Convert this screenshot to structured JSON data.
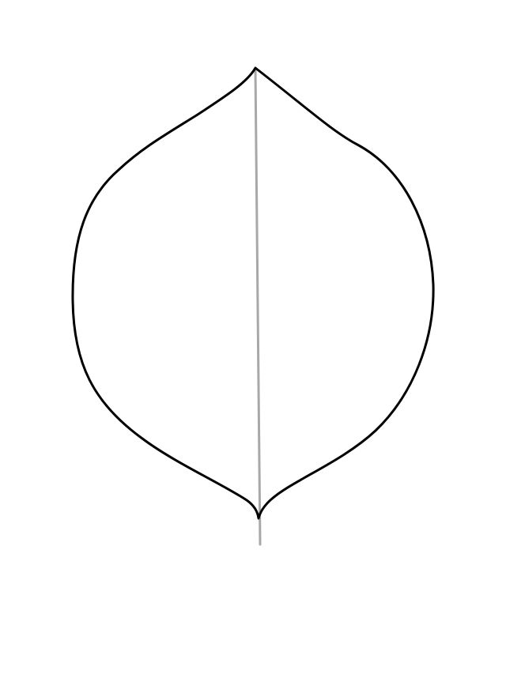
{
  "drawing": {
    "subject": "leaf-outline",
    "colors": {
      "background": "#ffffff",
      "outline": "#000000",
      "midrib": "#a8a8a8"
    }
  }
}
